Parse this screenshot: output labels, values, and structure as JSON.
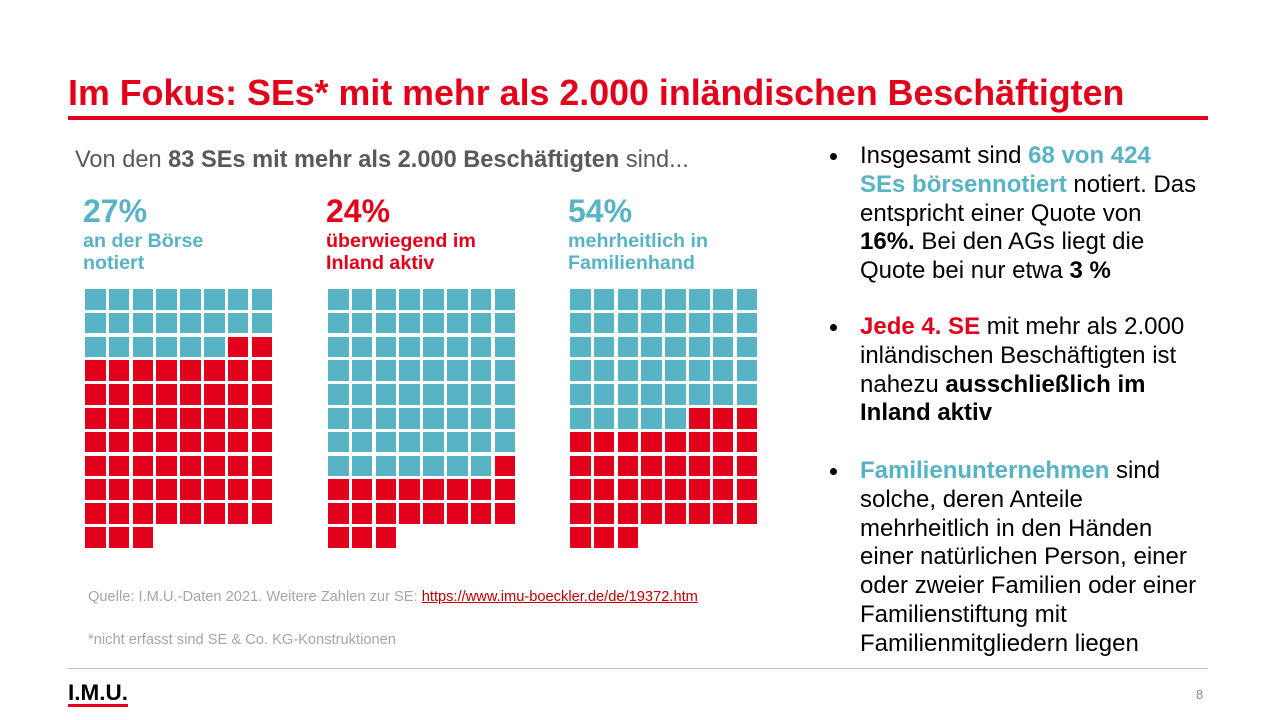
{
  "slide": {
    "title": "Im Fokus: SEs* mit mehr als 2.000 inländischen Beschäftigten",
    "page_number": "8",
    "logo_text": "I.M.U."
  },
  "colors": {
    "brand_red": "#E2001A",
    "teal": "#58B4C4",
    "intro_gray": "#595959",
    "note_gray": "#A6A6A6"
  },
  "intro": {
    "prefix": "Von den ",
    "emphasis": "83 SEs mit mehr als 2.000 Beschäftigten",
    "suffix": " sind..."
  },
  "chart_data": [
    {
      "type": "waffle",
      "value_label": "27%",
      "caption": [
        "an der Börse",
        "notiert"
      ],
      "label_color": "#58B4C4",
      "values": [
        22,
        61
      ],
      "colors": [
        "#58B4C4",
        "#E2001A"
      ]
    },
    {
      "type": "waffle",
      "value_label": "24%",
      "caption": [
        "überwiegend im",
        "Inland aktiv"
      ],
      "label_color": "#E2001A",
      "values": [
        63,
        20
      ],
      "colors": [
        "#58B4C4",
        "#E2001A"
      ]
    },
    {
      "type": "waffle",
      "value_label": "54%",
      "caption": [
        "mehrheitlich in",
        "Familienhand"
      ],
      "label_color": "#58B4C4",
      "values": [
        45,
        38
      ],
      "colors": [
        "#58B4C4",
        "#E2001A"
      ]
    }
  ],
  "bullets": [
    {
      "lines": [
        [
          "Insgesamt sind ",
          "68 von 424"
        ],
        [
          "SEs börsennotiert",
          " notiert. Das"
        ],
        [
          "entspricht einer Quote von"
        ],
        [
          "16%.",
          " Bei den AGs liegt die"
        ],
        [
          "Quote bei nur etwa ",
          "3 %"
        ]
      ]
    },
    {
      "lines": [
        [
          "Jede 4. SE",
          " mit mehr als 2.000"
        ],
        [
          "inländischen Beschäftigten ist"
        ],
        [
          "nahezu ",
          "ausschließlich im"
        ],
        [
          "Inland aktiv"
        ]
      ]
    },
    {
      "lines": [
        [
          "Familienunternehmen",
          " sind"
        ],
        [
          "solche, deren Anteile"
        ],
        [
          "mehrheitlich in den Händen"
        ],
        [
          "einer natürlichen Person, einer"
        ],
        [
          "oder zweier Familien oder einer"
        ],
        [
          "Familienstiftung mit"
        ],
        [
          "Familienmitgliedern liegen"
        ]
      ]
    }
  ],
  "footnotes": {
    "source_prefix": "Quelle: I.M.U.-Daten 2021. Weitere Zahlen zur SE: ",
    "source_link": "https://www.imu-boeckler.de/de/19372.htm",
    "note": "*nicht erfasst sind SE & Co. KG-Konstruktionen"
  }
}
